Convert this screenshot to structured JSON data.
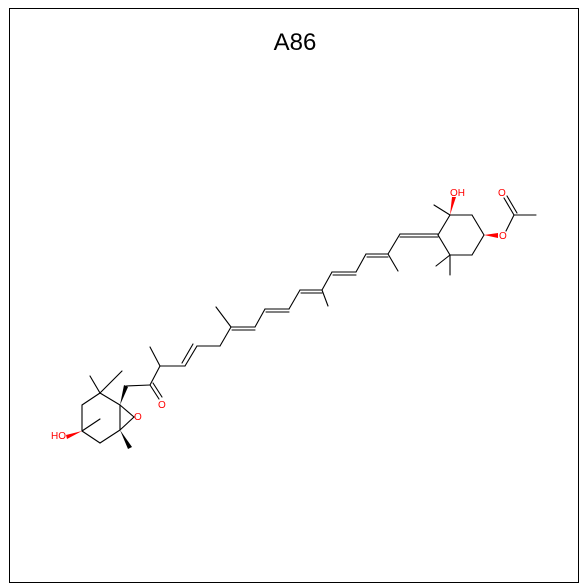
{
  "title": "A86",
  "atoms": {
    "ho_left": "HO",
    "o_epoxide": "O",
    "o_ketone": "O",
    "oh_right": "OH",
    "o_ester": "O",
    "o_carbonyl": "O"
  },
  "colors": {
    "bond": "#000000",
    "heteroatom": "#ff0000",
    "atom_index": "#33aa33",
    "border": "#000000"
  }
}
